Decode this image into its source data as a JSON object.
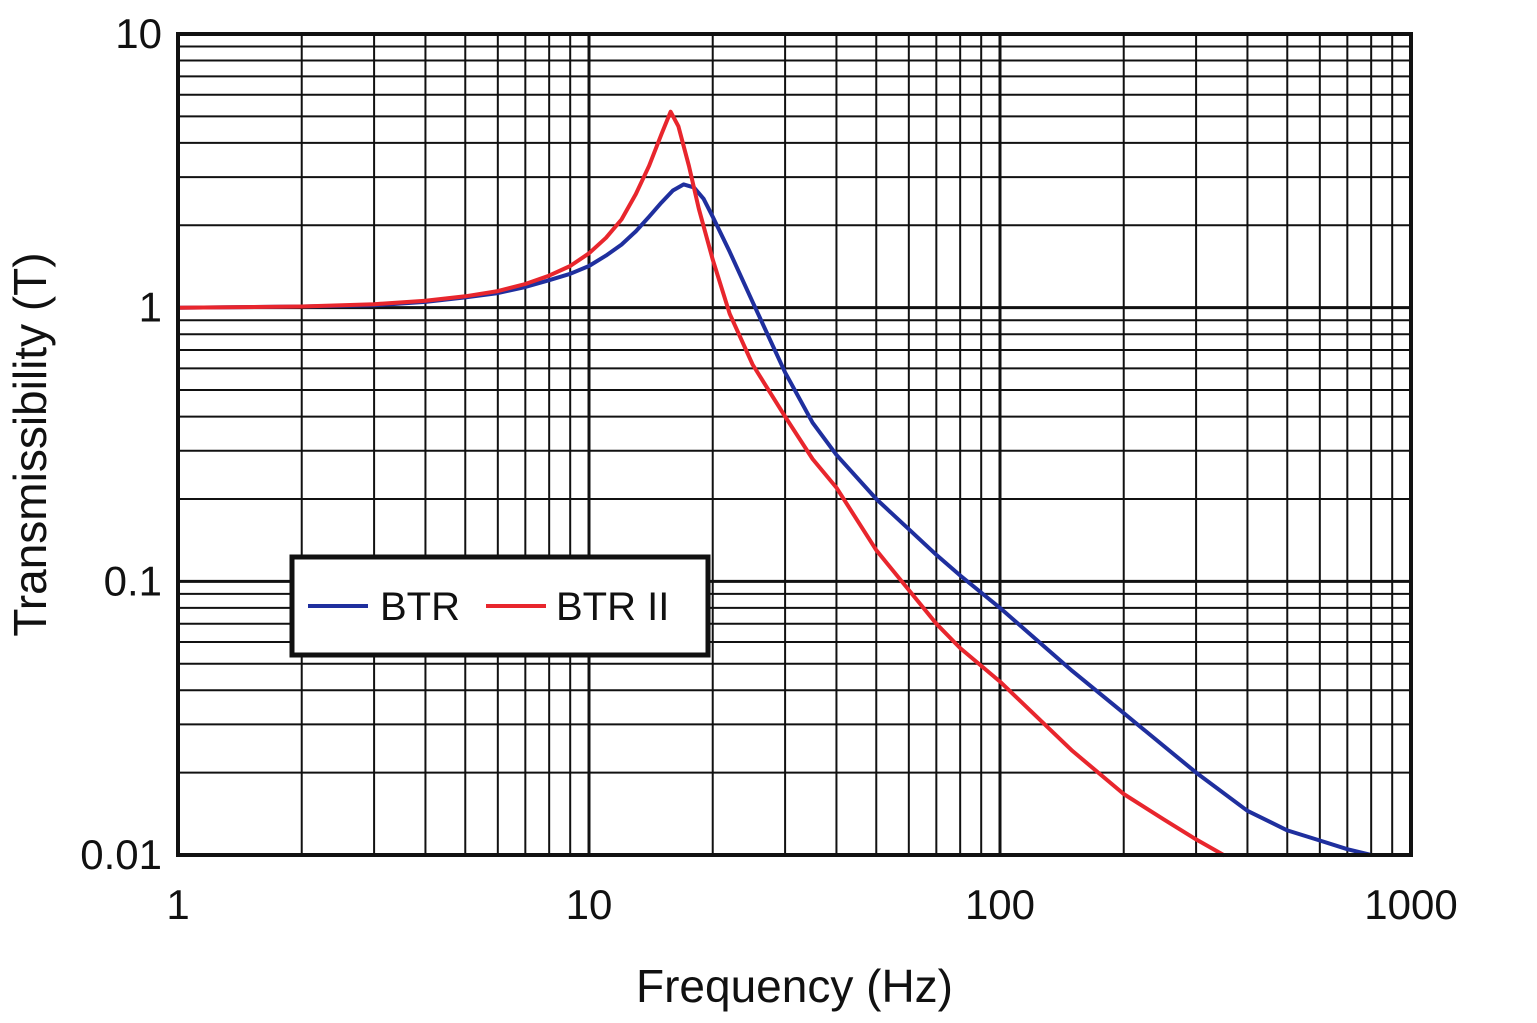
{
  "chart_data": {
    "type": "line",
    "title": "",
    "xlabel": "Frequency (Hz)",
    "ylabel": "Transmissibility (T)",
    "xscale": "log",
    "yscale": "log",
    "xlim": [
      1,
      1000
    ],
    "ylim": [
      0.01,
      10
    ],
    "x_ticks": [
      {
        "value": 1,
        "label": "1"
      },
      {
        "value": 10,
        "label": "10"
      },
      {
        "value": 100,
        "label": "100"
      },
      {
        "value": 1000,
        "label": "1000"
      }
    ],
    "y_ticks": [
      {
        "value": 0.01,
        "label": "0.01"
      },
      {
        "value": 0.1,
        "label": "0.1"
      },
      {
        "value": 1,
        "label": "1"
      },
      {
        "value": 10,
        "label": "10"
      }
    ],
    "grid": true,
    "legend_position": "center-left",
    "series": [
      {
        "name": "BTR",
        "color": "#1f2f9e",
        "points": [
          [
            1,
            1.0
          ],
          [
            2,
            1.01
          ],
          [
            3,
            1.02
          ],
          [
            4,
            1.05
          ],
          [
            5,
            1.09
          ],
          [
            6,
            1.13
          ],
          [
            7,
            1.19
          ],
          [
            8,
            1.26
          ],
          [
            9,
            1.33
          ],
          [
            10,
            1.42
          ],
          [
            11,
            1.55
          ],
          [
            12,
            1.7
          ],
          [
            13,
            1.9
          ],
          [
            14,
            2.15
          ],
          [
            15,
            2.42
          ],
          [
            16,
            2.68
          ],
          [
            17,
            2.82
          ],
          [
            18,
            2.75
          ],
          [
            19,
            2.5
          ],
          [
            20,
            2.15
          ],
          [
            22,
            1.6
          ],
          [
            25,
            1.05
          ],
          [
            30,
            0.58
          ],
          [
            35,
            0.38
          ],
          [
            40,
            0.29
          ],
          [
            50,
            0.2
          ],
          [
            60,
            0.155
          ],
          [
            70,
            0.125
          ],
          [
            80,
            0.105
          ],
          [
            100,
            0.08
          ],
          [
            150,
            0.047
          ],
          [
            200,
            0.033
          ],
          [
            300,
            0.02
          ],
          [
            400,
            0.0145
          ],
          [
            500,
            0.0123
          ],
          [
            600,
            0.0113
          ],
          [
            700,
            0.0105
          ],
          [
            800,
            0.01
          ]
        ]
      },
      {
        "name": "BTR II",
        "color": "#e8262d",
        "points": [
          [
            1,
            1.0
          ],
          [
            2,
            1.01
          ],
          [
            3,
            1.03
          ],
          [
            4,
            1.06
          ],
          [
            5,
            1.1
          ],
          [
            6,
            1.15
          ],
          [
            7,
            1.22
          ],
          [
            8,
            1.31
          ],
          [
            9,
            1.42
          ],
          [
            10,
            1.58
          ],
          [
            11,
            1.8
          ],
          [
            12,
            2.1
          ],
          [
            13,
            2.6
          ],
          [
            14,
            3.3
          ],
          [
            15,
            4.3
          ],
          [
            15.8,
            5.2
          ],
          [
            16.5,
            4.6
          ],
          [
            17.5,
            3.3
          ],
          [
            18.5,
            2.3
          ],
          [
            20,
            1.5
          ],
          [
            22,
            0.95
          ],
          [
            25,
            0.62
          ],
          [
            30,
            0.4
          ],
          [
            35,
            0.28
          ],
          [
            40,
            0.22
          ],
          [
            50,
            0.13
          ],
          [
            60,
            0.093
          ],
          [
            70,
            0.07
          ],
          [
            80,
            0.057
          ],
          [
            100,
            0.043
          ],
          [
            150,
            0.024
          ],
          [
            200,
            0.0167
          ],
          [
            250,
            0.0135
          ],
          [
            300,
            0.0114
          ],
          [
            350,
            0.01
          ]
        ]
      }
    ]
  }
}
